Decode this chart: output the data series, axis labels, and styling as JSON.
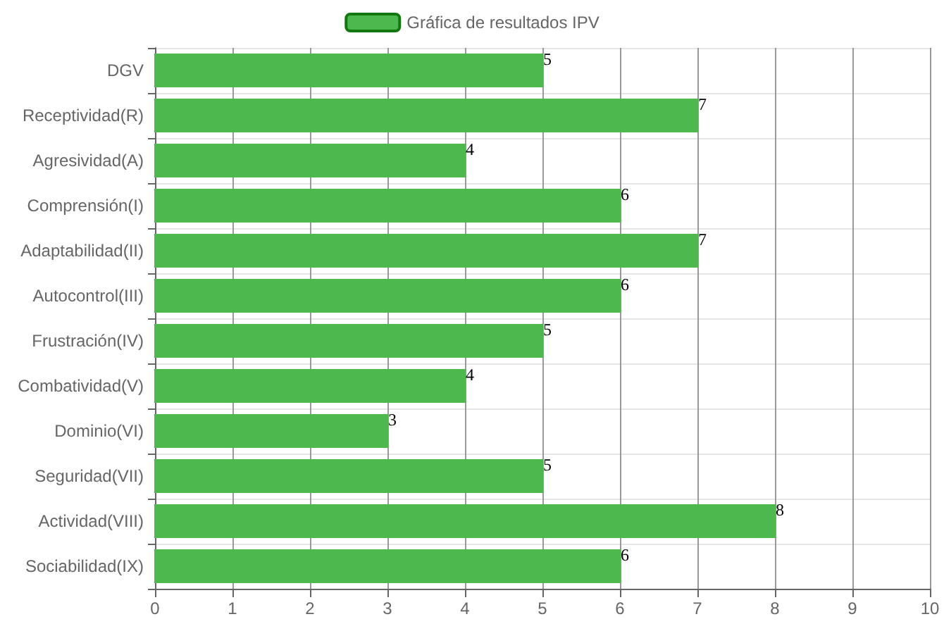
{
  "chart_data": {
    "type": "bar",
    "orientation": "horizontal",
    "categories": [
      "DGV",
      "Receptividad(R)",
      "Agresividad(A)",
      "Comprensión(I)",
      "Adaptabilidad(II)",
      "Autocontrol(III)",
      "Frustración(IV)",
      "Combatividad(V)",
      "Dominio(VI)",
      "Seguridad(VII)",
      "Actividad(VIII)",
      "Sociabilidad(IX)"
    ],
    "series": [
      {
        "name": "Gráfica de resultados IPV",
        "color": "#4db84d",
        "values": [
          5,
          7,
          4,
          6,
          7,
          6,
          5,
          4,
          3,
          5,
          8,
          6
        ]
      }
    ],
    "xlim": [
      0,
      10
    ],
    "xticks": [
      0,
      1,
      2,
      3,
      4,
      5,
      6,
      7,
      8,
      9,
      10
    ],
    "grid": true,
    "legend": "top",
    "data_labels": true
  }
}
